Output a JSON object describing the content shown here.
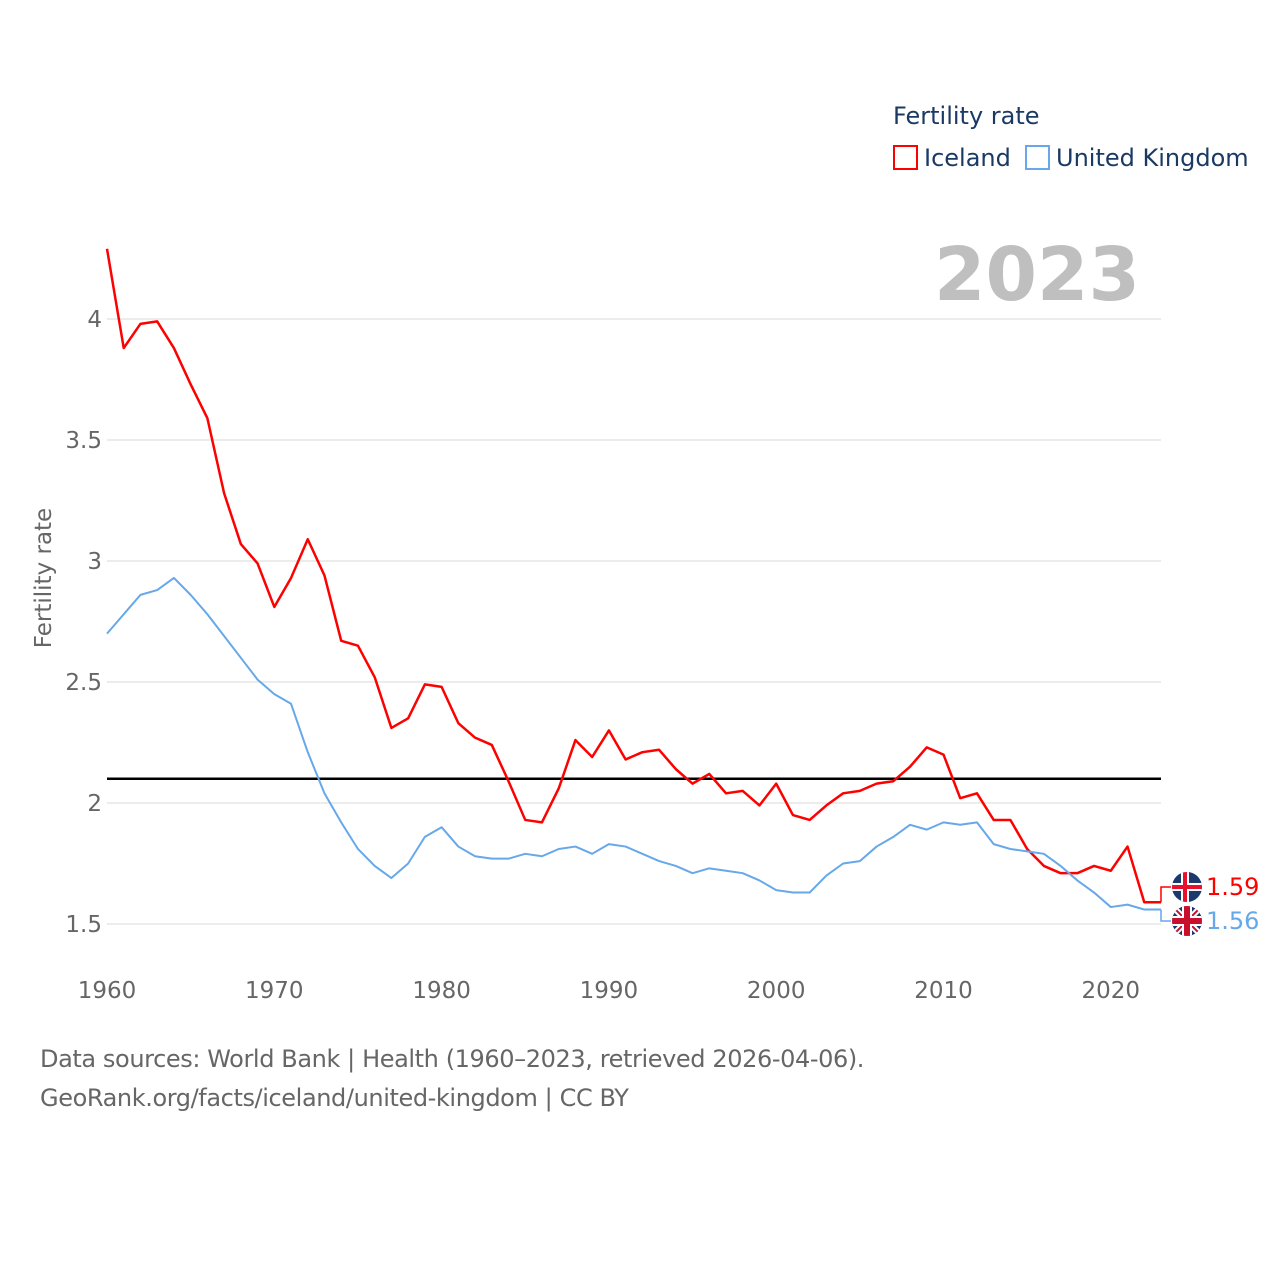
{
  "chart_data": {
    "type": "line",
    "title": "",
    "watermark_year": "2023",
    "legend_title": "Fertility rate",
    "legend_position": "top-right",
    "xlabel": "",
    "ylabel": "Fertility rate",
    "xlim": [
      1960,
      2023
    ],
    "ylim": [
      1.4,
      4.35
    ],
    "x_ticks": [
      1960,
      1970,
      1980,
      1990,
      2000,
      2010,
      2020
    ],
    "x_tick_labels": [
      "1960",
      "1970",
      "1980",
      "1990",
      "2000",
      "2010",
      "2020"
    ],
    "y_ticks": [
      1.5,
      2,
      2.5,
      3,
      3.5,
      4
    ],
    "y_tick_labels": [
      "1.5",
      "2",
      "2.5",
      "3",
      "3.5",
      "4"
    ],
    "grid": true,
    "reference_line": {
      "value": 2.1,
      "color": "#000000"
    },
    "x": [
      1960,
      1961,
      1962,
      1963,
      1964,
      1965,
      1966,
      1967,
      1968,
      1969,
      1970,
      1971,
      1972,
      1973,
      1974,
      1975,
      1976,
      1977,
      1978,
      1979,
      1980,
      1981,
      1982,
      1983,
      1984,
      1985,
      1986,
      1987,
      1988,
      1989,
      1990,
      1991,
      1992,
      1993,
      1994,
      1995,
      1996,
      1997,
      1998,
      1999,
      2000,
      2001,
      2002,
      2003,
      2004,
      2005,
      2006,
      2007,
      2008,
      2009,
      2010,
      2011,
      2012,
      2013,
      2014,
      2015,
      2016,
      2017,
      2018,
      2019,
      2020,
      2021,
      2022,
      2023
    ],
    "series": [
      {
        "name": "Iceland",
        "color": "#ff0000",
        "end_label": "1.59",
        "flag": "iceland-flag",
        "values": [
          4.29,
          3.88,
          3.98,
          3.99,
          3.88,
          3.73,
          3.59,
          3.28,
          3.07,
          2.99,
          2.81,
          2.93,
          3.09,
          2.94,
          2.67,
          2.65,
          2.52,
          2.31,
          2.35,
          2.49,
          2.48,
          2.33,
          2.27,
          2.24,
          2.09,
          1.93,
          1.92,
          2.06,
          2.26,
          2.19,
          2.3,
          2.18,
          2.21,
          2.22,
          2.14,
          2.08,
          2.12,
          2.04,
          2.05,
          1.99,
          2.08,
          1.95,
          1.93,
          1.99,
          2.04,
          2.05,
          2.08,
          2.09,
          2.15,
          2.23,
          2.2,
          2.02,
          2.04,
          1.93,
          1.93,
          1.81,
          1.74,
          1.71,
          1.71,
          1.74,
          1.72,
          1.82,
          1.59,
          1.59
        ]
      },
      {
        "name": "United Kingdom",
        "color": "#66a8ea",
        "end_label": "1.56",
        "flag": "uk-flag",
        "values": [
          2.7,
          2.78,
          2.86,
          2.88,
          2.93,
          2.86,
          2.78,
          2.69,
          2.6,
          2.51,
          2.45,
          2.41,
          2.21,
          2.04,
          1.92,
          1.81,
          1.74,
          1.69,
          1.75,
          1.86,
          1.9,
          1.82,
          1.78,
          1.77,
          1.77,
          1.79,
          1.78,
          1.81,
          1.82,
          1.79,
          1.83,
          1.82,
          1.79,
          1.76,
          1.74,
          1.71,
          1.73,
          1.72,
          1.71,
          1.68,
          1.64,
          1.63,
          1.63,
          1.7,
          1.75,
          1.76,
          1.82,
          1.86,
          1.91,
          1.89,
          1.92,
          1.91,
          1.92,
          1.83,
          1.81,
          1.8,
          1.79,
          1.74,
          1.68,
          1.63,
          1.57,
          1.58,
          1.56,
          1.56
        ]
      }
    ]
  },
  "footer": {
    "line1": "Data sources: World Bank | Health (1960–2023, retrieved 2026-04-06).",
    "line2": "GeoRank.org/facts/iceland/united-kingdom | CC BY"
  }
}
